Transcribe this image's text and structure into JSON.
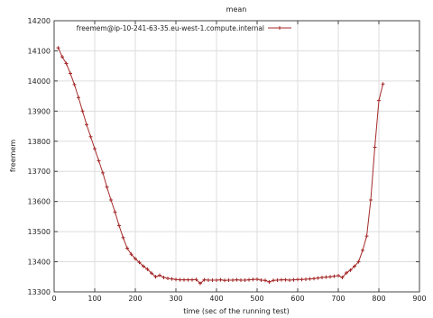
{
  "chart_data": {
    "type": "line",
    "title": "mean",
    "xlabel": "time (sec of the running test)",
    "ylabel": "freemem",
    "xlim": [
      0,
      900
    ],
    "ylim": [
      13300,
      14200
    ],
    "xticks": [
      0,
      100,
      200,
      300,
      400,
      500,
      600,
      700,
      800,
      900
    ],
    "yticks": [
      13300,
      13400,
      13500,
      13600,
      13700,
      13800,
      13900,
      14000,
      14100,
      14200
    ],
    "grid": true,
    "legend_position": "top",
    "colors": {
      "series": "#a52a2a",
      "frame": "#444444",
      "grid": "#dddddd"
    },
    "series": [
      {
        "name": "freemem@ip-10-241-63-35.eu-west-1.compute.internal",
        "x": [
          10,
          20,
          30,
          40,
          50,
          60,
          70,
          80,
          90,
          100,
          110,
          120,
          130,
          140,
          150,
          160,
          170,
          180,
          190,
          200,
          210,
          220,
          230,
          240,
          250,
          260,
          270,
          280,
          290,
          300,
          310,
          320,
          330,
          340,
          350,
          360,
          370,
          380,
          390,
          400,
          410,
          420,
          430,
          440,
          450,
          460,
          470,
          480,
          490,
          500,
          510,
          520,
          530,
          540,
          550,
          560,
          570,
          580,
          590,
          600,
          610,
          620,
          630,
          640,
          650,
          660,
          670,
          680,
          690,
          700,
          710,
          720,
          730,
          740,
          750,
          760,
          770,
          780,
          790,
          800,
          810
        ],
        "y": [
          14110,
          14080,
          14058,
          14025,
          13988,
          13945,
          13900,
          13855,
          13815,
          13775,
          13735,
          13695,
          13648,
          13605,
          13565,
          13520,
          13480,
          13445,
          13425,
          13410,
          13398,
          13385,
          13375,
          13362,
          13350,
          13355,
          13348,
          13345,
          13343,
          13341,
          13340,
          13340,
          13340,
          13340,
          13341,
          13328,
          13340,
          13339,
          13339,
          13339,
          13340,
          13338,
          13339,
          13339,
          13340,
          13339,
          13339,
          13340,
          13341,
          13342,
          13339,
          13338,
          13333,
          13338,
          13339,
          13340,
          13340,
          13339,
          13340,
          13341,
          13341,
          13342,
          13343,
          13344,
          13346,
          13348,
          13349,
          13350,
          13352,
          13354,
          13348,
          13363,
          13372,
          13385,
          13400,
          13438,
          13485,
          13605,
          13780,
          13935,
          13990
        ]
      }
    ]
  }
}
